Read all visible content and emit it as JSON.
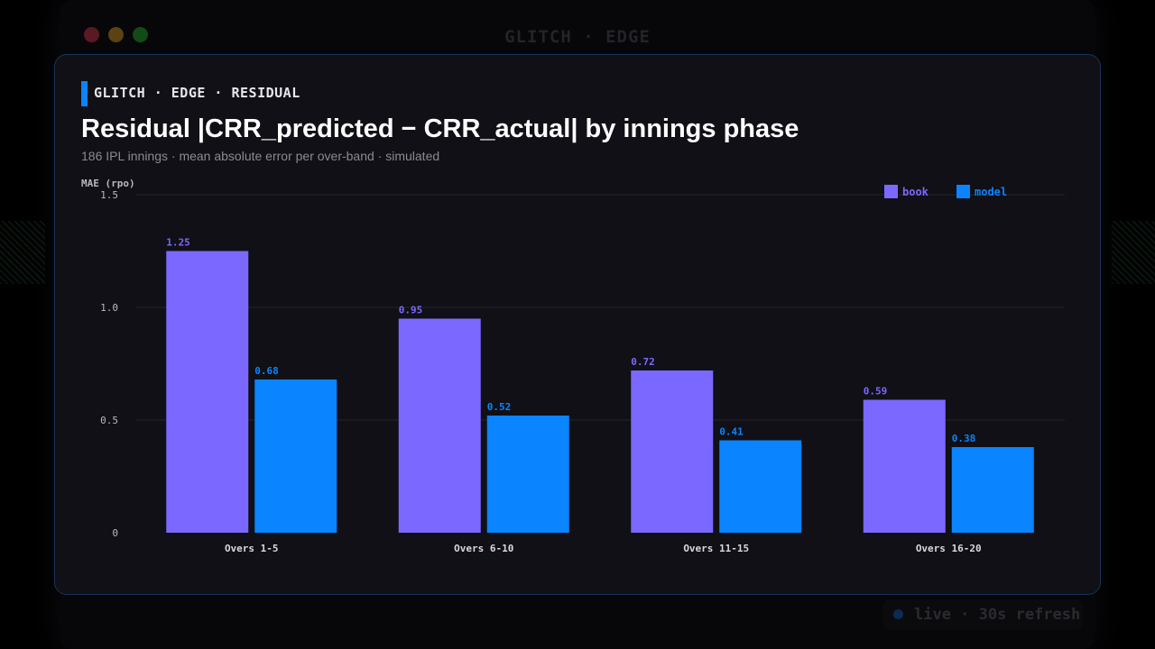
{
  "window": {
    "title": "GLITCH · EDGE",
    "status": "live · 30s refresh"
  },
  "card": {
    "eyebrow": "GLITCH · EDGE · RESIDUAL",
    "title": "Residual |CRR_predicted − CRR_actual| by innings phase",
    "subtitle": "186 IPL innings · mean absolute error per over-band · simulated"
  },
  "colors": {
    "book": "#7b68ff",
    "model": "#0a84ff",
    "accent": "#0a84ff",
    "card_border": "#173459"
  },
  "chart_data": {
    "type": "bar",
    "title": "Residual |CRR_predicted − CRR_actual| by innings phase",
    "ylabel": "MAE (rpo)",
    "xlabel": "",
    "ylim": [
      0,
      1.5
    ],
    "yticks": [
      0,
      0.5,
      1.0,
      1.5
    ],
    "ytick_labels": [
      "0",
      "0.5",
      "1.0",
      "1.5"
    ],
    "grid": true,
    "legend": "top-right",
    "categories": [
      "Overs 1-5",
      "Overs 6-10",
      "Overs 11-15",
      "Overs 16-20"
    ],
    "series": [
      {
        "name": "book",
        "values": [
          1.25,
          0.95,
          0.72,
          0.59
        ],
        "labels": [
          "1.25",
          "0.95",
          "0.72",
          "0.59"
        ]
      },
      {
        "name": "model",
        "values": [
          0.68,
          0.52,
          0.41,
          0.38
        ],
        "labels": [
          "0.68",
          "0.52",
          "0.41",
          "0.38"
        ]
      }
    ]
  }
}
